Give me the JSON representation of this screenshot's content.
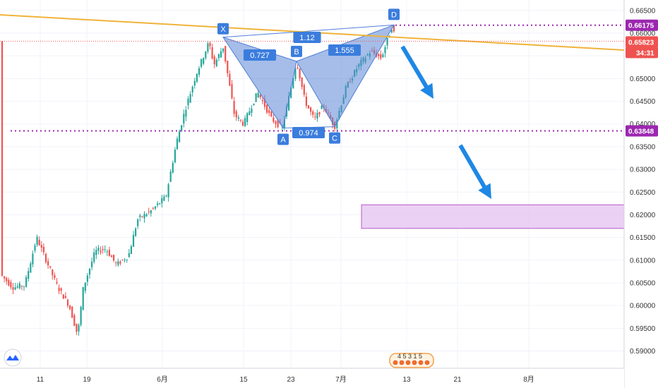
{
  "chart_data": {
    "type": "candlestick",
    "instrument_pattern": "bearish harmonic (XABCD) pattern",
    "y_range": [
      0.5862,
      0.6673
    ],
    "y_ticks": [
      "0.66500",
      "0.66000",
      "0.65500",
      "0.65000",
      "0.64500",
      "0.64000",
      "0.63500",
      "0.63000",
      "0.62500",
      "0.62000",
      "0.61500",
      "0.61000",
      "0.60500",
      "0.60000",
      "0.59500",
      "0.59000"
    ],
    "x_ticks": [
      "11",
      "19",
      "6月",
      "15",
      "23",
      "7月",
      "13",
      "21",
      "8月"
    ],
    "price_tags": {
      "upper_level": "0.66175",
      "current_price": "0.65823",
      "countdown": "34:31",
      "lower_level": "0.63848"
    },
    "pattern_points": [
      {
        "name": "X",
        "price": 0.6591
      },
      {
        "name": "A",
        "price": 0.6391
      },
      {
        "name": "B",
        "price": 0.6538
      },
      {
        "name": "C",
        "price": 0.6394
      },
      {
        "name": "D",
        "price": 0.6618
      }
    ],
    "ratios": {
      "xa_b": "0.727",
      "ab_c": "0.974",
      "bc_d": "1.555",
      "xd": "1.12"
    },
    "target_zone": {
      "low": 0.617,
      "high": 0.6222
    },
    "grid": true,
    "colors": {
      "up": "#26a69a",
      "down": "#ef5350",
      "pattern_fill": "#5b87d6",
      "pattern_stroke": "#4f7fd8",
      "label_bg": "#3b7ddd",
      "trendline": "#f0b33a",
      "level": "#9c27b0",
      "current": "#ef5350",
      "arrow": "#1e88e5",
      "zone_fill": "#e9cdf2",
      "zone_stroke": "#b046c8"
    }
  },
  "ui": {
    "logo_icon": "tradingview-logo-icon",
    "events_badge": "4 5 3 1 5"
  }
}
